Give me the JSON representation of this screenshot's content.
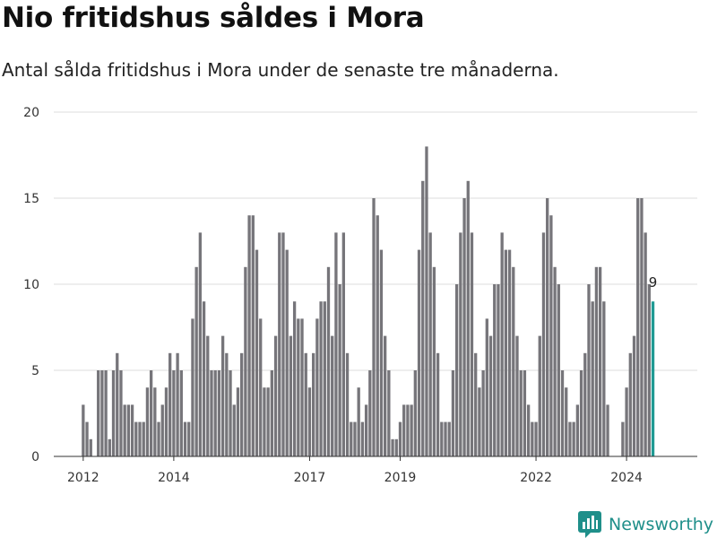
{
  "title": "Nio fritidshus såldes i Mora",
  "subtitle": "Antal sålda fritidshus i Mora under de senaste tre månaderna.",
  "brand": "Newsworthy",
  "colors": {
    "bar": "#76757a",
    "highlight": "#1f9a93",
    "grid": "#dddddd",
    "brand": "#1f8f8a"
  },
  "chart_data": {
    "type": "bar",
    "start": "2012-01",
    "x_tick_labels": [
      "2012",
      "2014",
      "2017",
      "2019",
      "2022",
      "2024"
    ],
    "ylim": [
      0,
      20
    ],
    "y_ticks": [
      "0",
      "5",
      "10",
      "15",
      "20"
    ],
    "grid": true,
    "highlight_last": true,
    "last_value_label": "9",
    "values": [
      3,
      2,
      1,
      0,
      5,
      5,
      5,
      1,
      5,
      6,
      5,
      3,
      3,
      3,
      2,
      2,
      2,
      4,
      5,
      4,
      2,
      3,
      4,
      6,
      5,
      6,
      5,
      2,
      2,
      8,
      11,
      13,
      9,
      7,
      5,
      5,
      5,
      7,
      6,
      5,
      3,
      4,
      6,
      11,
      14,
      14,
      12,
      8,
      4,
      4,
      5,
      7,
      13,
      13,
      12,
      7,
      9,
      8,
      8,
      6,
      4,
      6,
      8,
      9,
      9,
      11,
      7,
      13,
      10,
      13,
      6,
      2,
      2,
      4,
      2,
      3,
      5,
      15,
      14,
      12,
      7,
      5,
      1,
      1,
      2,
      3,
      3,
      3,
      5,
      12,
      16,
      18,
      13,
      11,
      6,
      2,
      2,
      2,
      5,
      10,
      13,
      15,
      16,
      13,
      6,
      4,
      5,
      8,
      7,
      10,
      10,
      13,
      12,
      12,
      11,
      7,
      5,
      5,
      3,
      2,
      2,
      7,
      13,
      15,
      14,
      11,
      10,
      5,
      4,
      2,
      2,
      3,
      5,
      6,
      10,
      9,
      11,
      11,
      9,
      3,
      0,
      0,
      0,
      2,
      4,
      6,
      7,
      15,
      15,
      13,
      10,
      9
    ]
  }
}
